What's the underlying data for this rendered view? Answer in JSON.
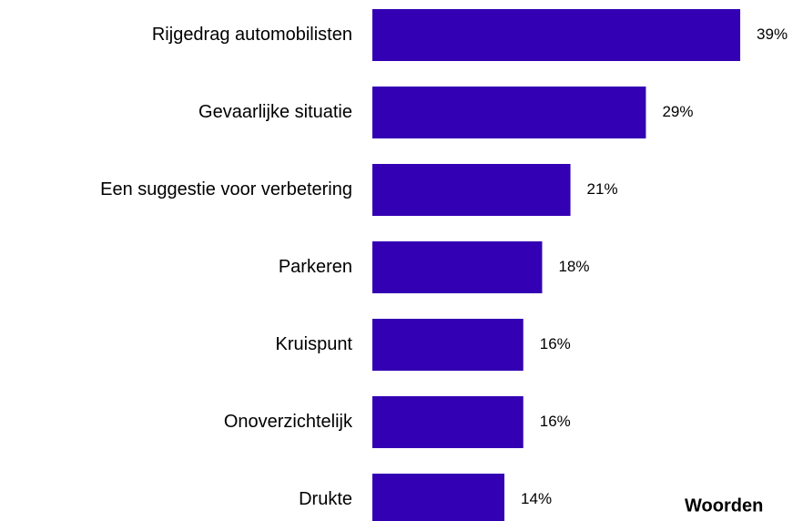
{
  "chart_data": {
    "type": "bar",
    "orientation": "horizontal",
    "categories": [
      "Rijgedrag automobilisten",
      "Gevaarlijke situatie",
      "Een suggestie voor verbetering",
      "Parkeren",
      "Kruispunt",
      "Onoverzichtelijk",
      "Drukte"
    ],
    "values": [
      39,
      29,
      21,
      18,
      16,
      16,
      14
    ],
    "value_labels": [
      "39%",
      "29%",
      "21%",
      "18%",
      "16%",
      "16%",
      "14%"
    ],
    "color": "#3300b3",
    "annotation": "Woorden"
  }
}
